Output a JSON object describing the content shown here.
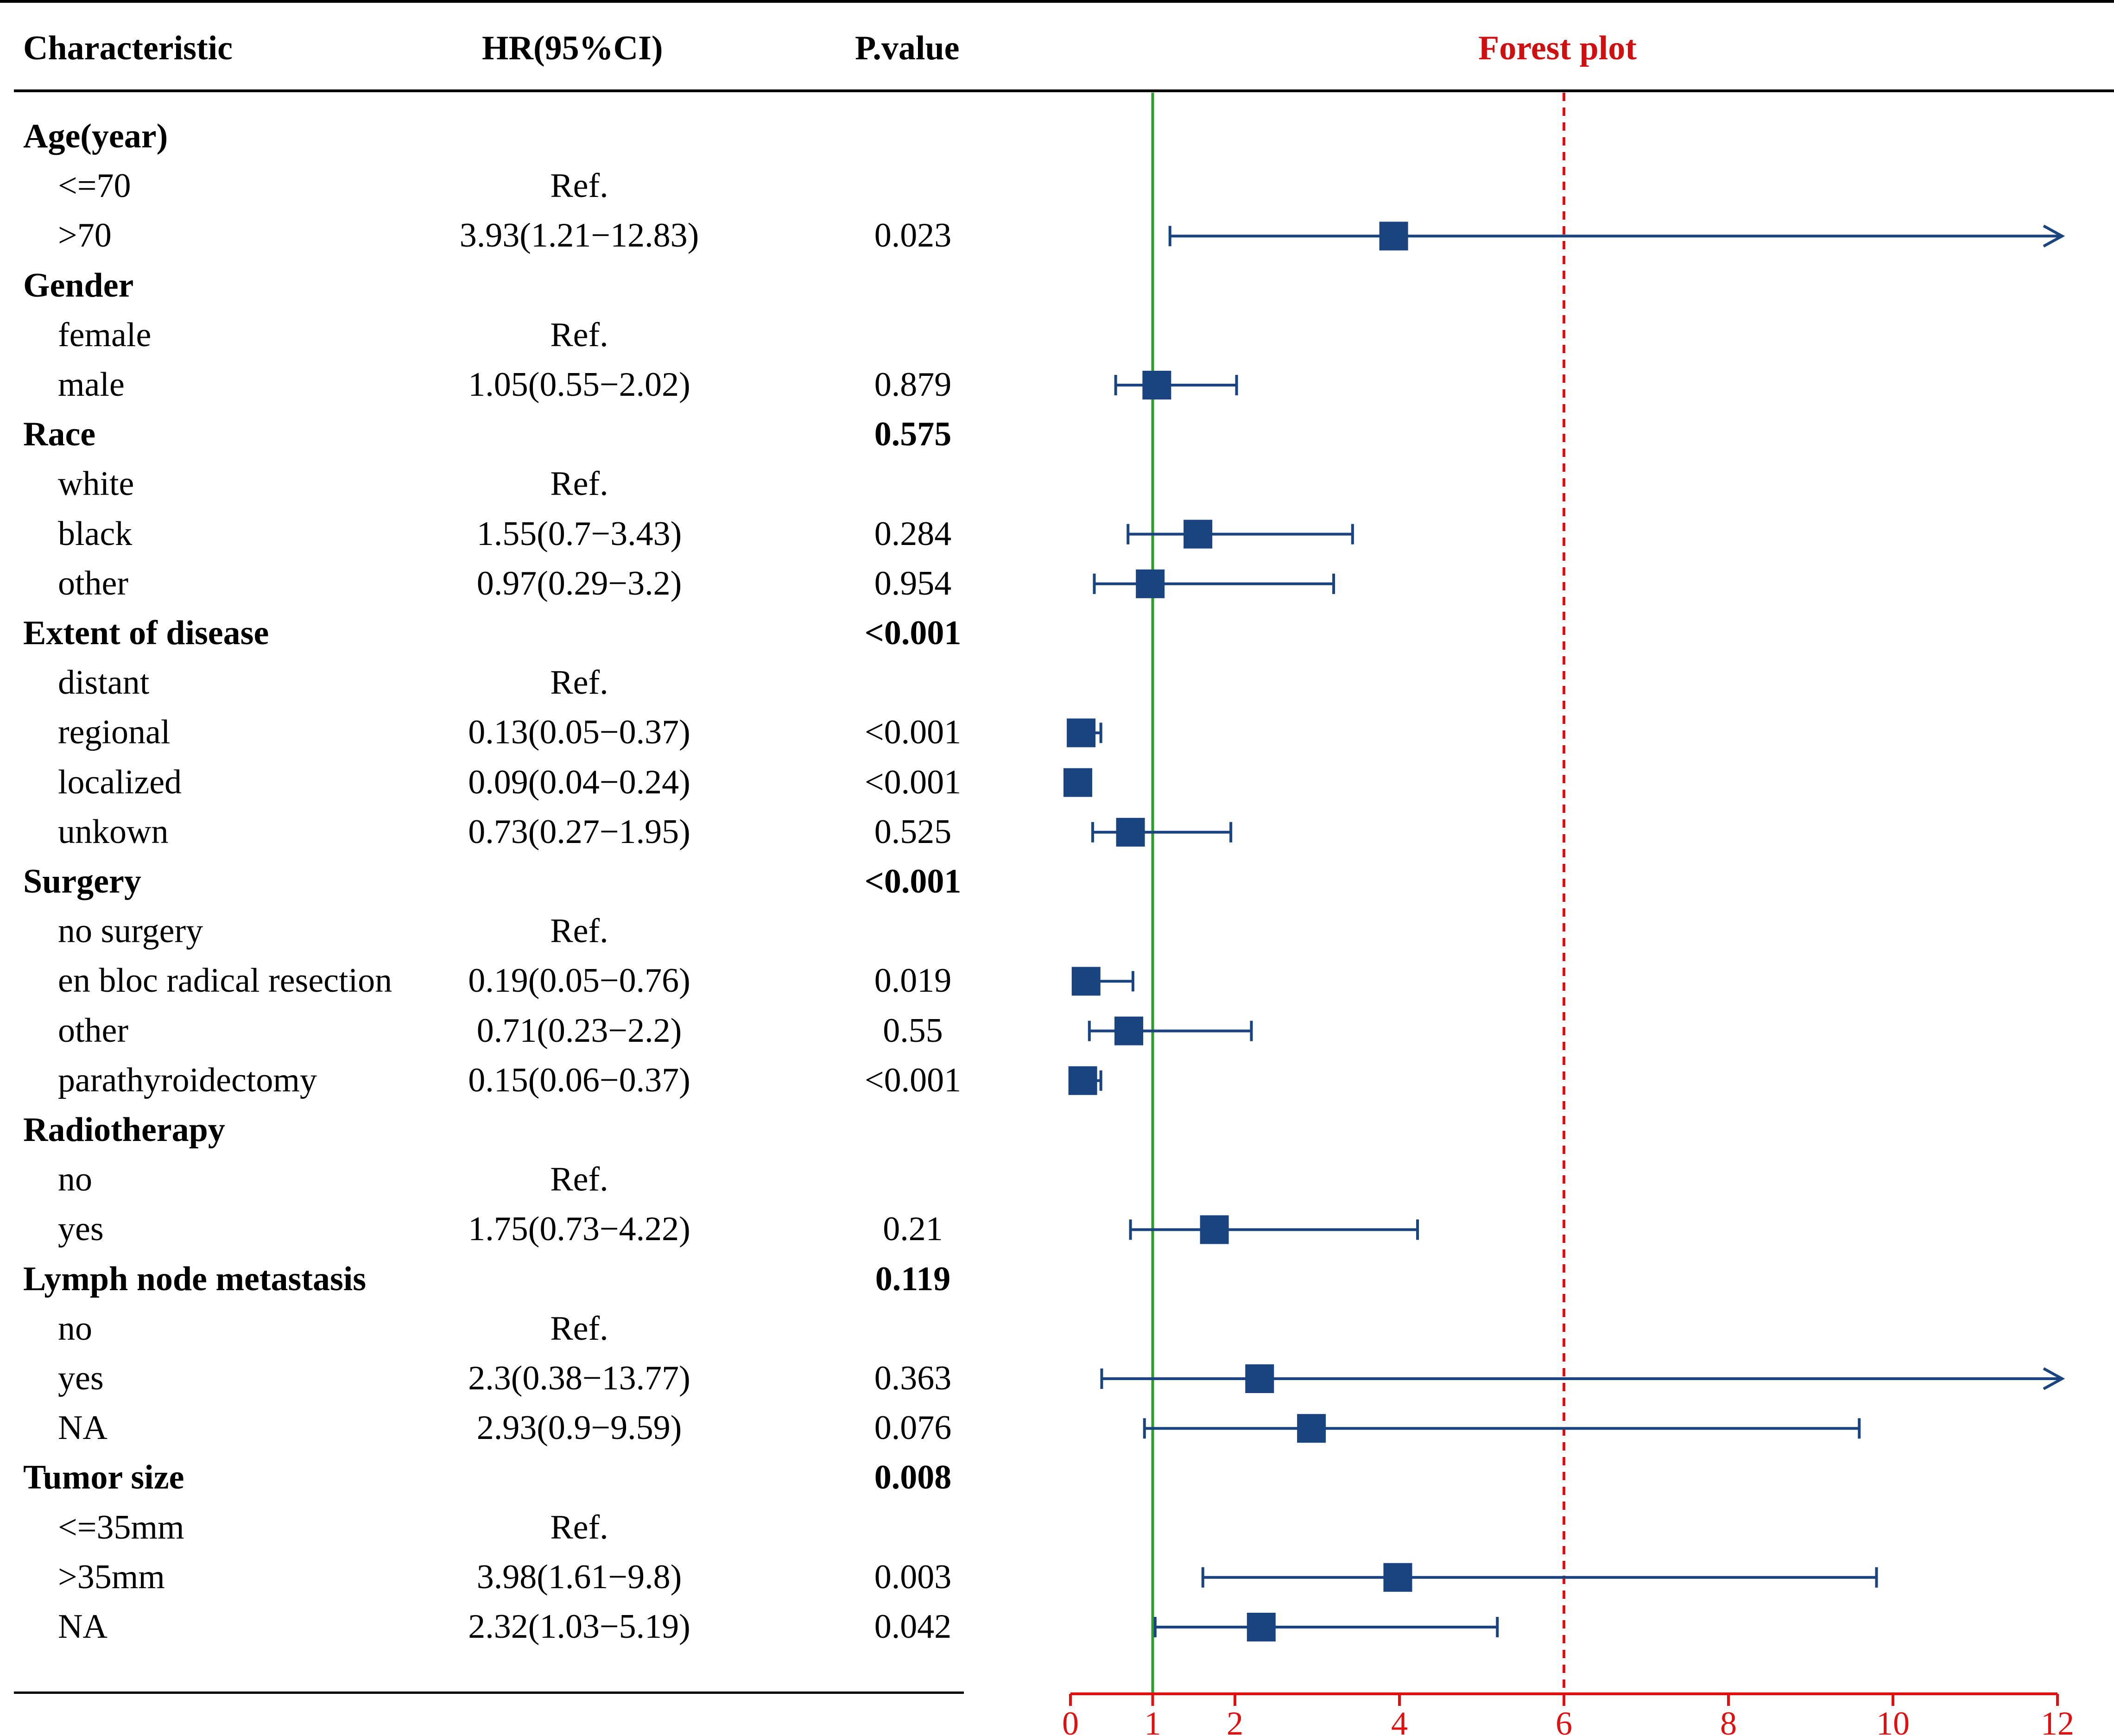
{
  "headers": {
    "characteristic": "Characteristic",
    "hr": "HR(95%CI)",
    "pvalue": "P.value",
    "forest": "Forest plot"
  },
  "colors": {
    "marker": "#1a4480",
    "reference_line": "#2aa02a",
    "dashed_line": "#e01010",
    "axis": "#e01010",
    "forest_title": "#d01010"
  },
  "rows": [
    {
      "label": "Age(year)",
      "group": true,
      "hr": "",
      "p": "",
      "p_bold": false
    },
    {
      "label": "<=70",
      "group": false,
      "hr": "Ref.",
      "p": "",
      "p_bold": false
    },
    {
      "label": ">70",
      "group": false,
      "hr": "3.93(1.21−12.83)",
      "p": "0.023",
      "p_bold": false
    },
    {
      "label": "Gender",
      "group": true,
      "hr": "",
      "p": "",
      "p_bold": false
    },
    {
      "label": "female",
      "group": false,
      "hr": "Ref.",
      "p": "",
      "p_bold": false
    },
    {
      "label": "male",
      "group": false,
      "hr": "1.05(0.55−2.02)",
      "p": "0.879",
      "p_bold": false
    },
    {
      "label": "Race",
      "group": true,
      "hr": "",
      "p": "0.575",
      "p_bold": true
    },
    {
      "label": "white",
      "group": false,
      "hr": "Ref.",
      "p": "",
      "p_bold": false
    },
    {
      "label": "black",
      "group": false,
      "hr": "1.55(0.7−3.43)",
      "p": "0.284",
      "p_bold": false
    },
    {
      "label": "other",
      "group": false,
      "hr": "0.97(0.29−3.2)",
      "p": "0.954",
      "p_bold": false
    },
    {
      "label": "Extent of disease",
      "group": true,
      "hr": "",
      "p": "<0.001",
      "p_bold": true
    },
    {
      "label": "distant",
      "group": false,
      "hr": "Ref.",
      "p": "",
      "p_bold": false
    },
    {
      "label": "regional",
      "group": false,
      "hr": "0.13(0.05−0.37)",
      "p": "<0.001",
      "p_bold": false
    },
    {
      "label": "localized",
      "group": false,
      "hr": "0.09(0.04−0.24)",
      "p": "<0.001",
      "p_bold": false
    },
    {
      "label": "unkown",
      "group": false,
      "hr": "0.73(0.27−1.95)",
      "p": "0.525",
      "p_bold": false
    },
    {
      "label": "Surgery",
      "group": true,
      "hr": "",
      "p": "<0.001",
      "p_bold": true
    },
    {
      "label": "no surgery",
      "group": false,
      "hr": "Ref.",
      "p": "",
      "p_bold": false
    },
    {
      "label": "en bloc radical resection",
      "group": false,
      "hr": "0.19(0.05−0.76)",
      "p": "0.019",
      "p_bold": false
    },
    {
      "label": "other",
      "group": false,
      "hr": "0.71(0.23−2.2)",
      "p": "0.55",
      "p_bold": false
    },
    {
      "label": "parathyroidectomy",
      "group": false,
      "hr": "0.15(0.06−0.37)",
      "p": "<0.001",
      "p_bold": false
    },
    {
      "label": "Radiotherapy",
      "group": true,
      "hr": "",
      "p": "",
      "p_bold": false
    },
    {
      "label": "no",
      "group": false,
      "hr": "Ref.",
      "p": "",
      "p_bold": false
    },
    {
      "label": "yes",
      "group": false,
      "hr": "1.75(0.73−4.22)",
      "p": "0.21",
      "p_bold": false
    },
    {
      "label": "Lymph node metastasis",
      "group": true,
      "hr": "",
      "p": "0.119",
      "p_bold": true
    },
    {
      "label": "no",
      "group": false,
      "hr": "Ref.",
      "p": "",
      "p_bold": false
    },
    {
      "label": "yes",
      "group": false,
      "hr": "2.3(0.38−13.77)",
      "p": "0.363",
      "p_bold": false
    },
    {
      "label": "NA",
      "group": false,
      "hr": "2.93(0.9−9.59)",
      "p": "0.076",
      "p_bold": false
    },
    {
      "label": "Tumor size",
      "group": true,
      "hr": "",
      "p": "0.008",
      "p_bold": true
    },
    {
      "label": "<=35mm",
      "group": false,
      "hr": "Ref.",
      "p": "",
      "p_bold": false
    },
    {
      "label": ">35mm",
      "group": false,
      "hr": "3.98(1.61−9.8)",
      "p": "0.003",
      "p_bold": false
    },
    {
      "label": "NA",
      "group": false,
      "hr": "2.32(1.03−5.19)",
      "p": "0.042",
      "p_bold": false
    }
  ],
  "chart_data": {
    "type": "scatter",
    "subtype": "forest",
    "title": "Forest plot",
    "xlim": [
      0,
      12
    ],
    "xticks": [
      0,
      1,
      2,
      4,
      6,
      8,
      10,
      12
    ],
    "reference_line": 1,
    "dashed_line": 6,
    "series": [
      {
        "name": ">70",
        "row": 2,
        "hr": 3.93,
        "lower": 1.21,
        "upper": 12.83,
        "clipped_upper": true
      },
      {
        "name": "male",
        "row": 5,
        "hr": 1.05,
        "lower": 0.55,
        "upper": 2.02,
        "clipped_upper": false
      },
      {
        "name": "black",
        "row": 8,
        "hr": 1.55,
        "lower": 0.7,
        "upper": 3.43,
        "clipped_upper": false
      },
      {
        "name": "other (race)",
        "row": 9,
        "hr": 0.97,
        "lower": 0.29,
        "upper": 3.2,
        "clipped_upper": false
      },
      {
        "name": "regional",
        "row": 12,
        "hr": 0.13,
        "lower": 0.05,
        "upper": 0.37,
        "clipped_upper": false
      },
      {
        "name": "localized",
        "row": 13,
        "hr": 0.09,
        "lower": 0.04,
        "upper": 0.24,
        "clipped_upper": false
      },
      {
        "name": "unkown",
        "row": 14,
        "hr": 0.73,
        "lower": 0.27,
        "upper": 1.95,
        "clipped_upper": false
      },
      {
        "name": "en bloc radical resection",
        "row": 17,
        "hr": 0.19,
        "lower": 0.05,
        "upper": 0.76,
        "clipped_upper": false
      },
      {
        "name": "other (surgery)",
        "row": 18,
        "hr": 0.71,
        "lower": 0.23,
        "upper": 2.2,
        "clipped_upper": false
      },
      {
        "name": "parathyroidectomy",
        "row": 19,
        "hr": 0.15,
        "lower": 0.06,
        "upper": 0.37,
        "clipped_upper": false
      },
      {
        "name": "yes (radiotherapy)",
        "row": 22,
        "hr": 1.75,
        "lower": 0.73,
        "upper": 4.22,
        "clipped_upper": false
      },
      {
        "name": "yes (lymph node)",
        "row": 25,
        "hr": 2.3,
        "lower": 0.38,
        "upper": 13.77,
        "clipped_upper": true
      },
      {
        "name": "NA (lymph node)",
        "row": 26,
        "hr": 2.93,
        "lower": 0.9,
        "upper": 9.59,
        "clipped_upper": false
      },
      {
        "name": ">35mm",
        "row": 29,
        "hr": 3.98,
        "lower": 1.61,
        "upper": 9.8,
        "clipped_upper": false
      },
      {
        "name": "NA (tumor size)",
        "row": 30,
        "hr": 2.32,
        "lower": 1.03,
        "upper": 5.19,
        "clipped_upper": false
      }
    ]
  }
}
